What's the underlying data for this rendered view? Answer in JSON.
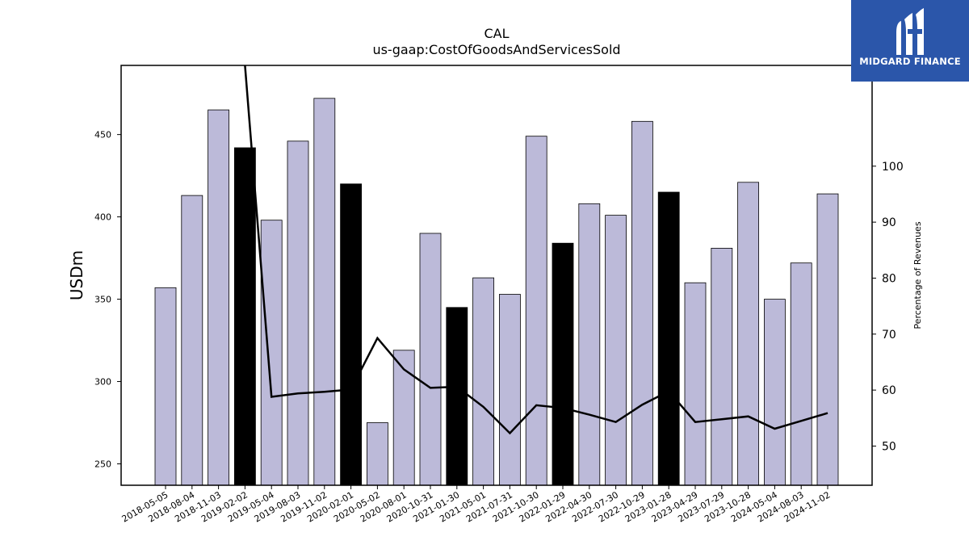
{
  "title_line1": "CAL",
  "title_line2": "us-gaap:CostOfGoodsAndServicesSold",
  "logo": {
    "text": "MIDGARD FINANCE",
    "bg_color": "#2b56aa"
  },
  "chart_data": {
    "type": "bar",
    "ylabel": "USDm",
    "ylabel_right": "Percentage of Revenues",
    "ylim": [
      237,
      492
    ],
    "ylim_right": [
      43,
      118
    ],
    "yticks": [
      250,
      300,
      350,
      400,
      450
    ],
    "yticks_right": [
      50,
      60,
      70,
      80,
      90,
      100
    ],
    "categories": [
      "2018-05-05",
      "2018-08-04",
      "2018-11-03",
      "2019-02-02",
      "2019-05-04",
      "2019-08-03",
      "2019-11-02",
      "2020-02-01",
      "2020-05-02",
      "2020-08-01",
      "2020-10-31",
      "2021-01-30",
      "2021-05-01",
      "2021-07-31",
      "2021-10-30",
      "2022-01-29",
      "2022-04-30",
      "2022-07-30",
      "2022-10-29",
      "2023-01-28",
      "2023-04-29",
      "2023-07-29",
      "2023-10-28",
      "2024-05-04",
      "2024-08-03",
      "2024-11-02"
    ],
    "series": [
      {
        "type": "bar",
        "values": [
          357,
          413,
          465,
          442,
          398,
          446,
          472,
          420,
          275,
          319,
          390,
          345,
          363,
          353,
          449,
          384,
          408,
          401,
          458,
          415,
          360,
          381,
          421,
          350,
          372,
          414
        ],
        "highlight": [
          false,
          false,
          false,
          true,
          false,
          false,
          false,
          true,
          false,
          false,
          false,
          true,
          false,
          false,
          false,
          true,
          false,
          false,
          false,
          true,
          false,
          false,
          false,
          false,
          false,
          false
        ]
      },
      {
        "type": "line",
        "axis": "right",
        "values": [
          null,
          null,
          null,
          118,
          58.8,
          59.4,
          59.7,
          60.1,
          69.3,
          63.7,
          60.4,
          60.6,
          57.0,
          52.3,
          57.3,
          56.8,
          55.6,
          54.3,
          57.4,
          59.8,
          54.3,
          54.8,
          55.3,
          53.1,
          54.5,
          55.9
        ]
      }
    ],
    "colors": {
      "bar": "#bcbad9",
      "highlight": "#000000",
      "line": "#000000"
    },
    "grid": false
  }
}
